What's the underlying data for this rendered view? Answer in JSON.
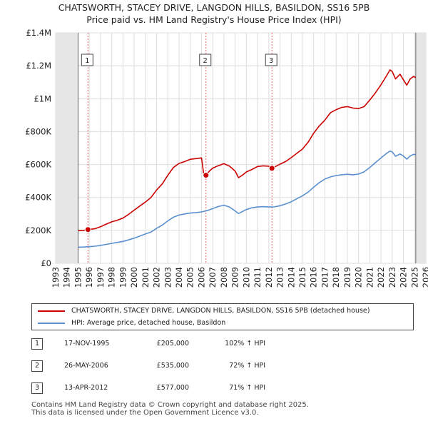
{
  "chart_data": {
    "type": "line",
    "title": "CHATSWORTH, STACEY DRIVE, LANGDON HILLS, BASILDON, SS16 5PB",
    "subtitle": "Price paid vs. HM Land Registry's House Price Index (HPI)",
    "xlim": [
      1993,
      2026
    ],
    "ylim": [
      0,
      1400000
    ],
    "x_ticks": [
      1993,
      1994,
      1995,
      1996,
      1997,
      1998,
      1999,
      2000,
      2001,
      2002,
      2003,
      2004,
      2005,
      2006,
      2007,
      2008,
      2009,
      2010,
      2011,
      2012,
      2013,
      2014,
      2015,
      2016,
      2017,
      2018,
      2019,
      2020,
      2021,
      2022,
      2023,
      2024,
      2025,
      2026
    ],
    "y_ticks": [
      0,
      200000,
      400000,
      600000,
      800000,
      1000000,
      1200000,
      1400000
    ],
    "y_tick_labels": [
      "£0",
      "£200K",
      "£400K",
      "£600K",
      "£800K",
      "£1M",
      "£1.2M",
      "£1.4M"
    ],
    "data_range": [
      1995.0,
      2025.1
    ],
    "series": [
      {
        "name": "CHATSWORTH, STACEY DRIVE, LANGDON HILLS, BASILDON, SS16 5PB (detached house)",
        "color": "#cc0000",
        "x": [
          1995.0,
          1995.5,
          1995.88,
          1996.5,
          1997.0,
          1997.5,
          1998.0,
          1998.5,
          1999.0,
          1999.5,
          2000.0,
          2000.5,
          2001.0,
          2001.5,
          2002.0,
          2002.5,
          2003.0,
          2003.5,
          2004.0,
          2004.5,
          2005.0,
          2005.5,
          2006.0,
          2006.2,
          2006.4,
          2006.7,
          2007.0,
          2007.5,
          2008.0,
          2008.5,
          2009.0,
          2009.3,
          2009.7,
          2010.0,
          2010.5,
          2011.0,
          2011.5,
          2012.0,
          2012.28,
          2012.6,
          2013.0,
          2013.5,
          2014.0,
          2014.5,
          2015.0,
          2015.5,
          2016.0,
          2016.5,
          2017.0,
          2017.5,
          2018.0,
          2018.5,
          2019.0,
          2019.5,
          2020.0,
          2020.5,
          2021.0,
          2021.5,
          2022.0,
          2022.5,
          2022.8,
          2023.0,
          2023.3,
          2023.7,
          2024.0,
          2024.3,
          2024.6,
          2024.9,
          2025.1
        ],
        "y": [
          198000,
          200000,
          205000,
          210000,
          222000,
          238000,
          252000,
          262000,
          275000,
          297000,
          323000,
          348000,
          372000,
          400000,
          445000,
          482000,
          535000,
          582000,
          607000,
          618000,
          632000,
          636000,
          640000,
          540000,
          535000,
          560000,
          578000,
          593000,
          605000,
          590000,
          560000,
          520000,
          538000,
          555000,
          570000,
          588000,
          592000,
          590000,
          577000,
          588000,
          602000,
          618000,
          642000,
          668000,
          694000,
          735000,
          790000,
          835000,
          870000,
          915000,
          933000,
          947000,
          952000,
          943000,
          940000,
          952000,
          992000,
          1035000,
          1085000,
          1140000,
          1175000,
          1165000,
          1120000,
          1148000,
          1115000,
          1082000,
          1120000,
          1135000,
          1128000
        ]
      },
      {
        "name": "HPI: Average price, detached house, Basildon",
        "color": "#5a8fcf",
        "x": [
          1995.0,
          1995.5,
          1996.0,
          1996.5,
          1997.0,
          1997.5,
          1998.0,
          1998.5,
          1999.0,
          1999.5,
          2000.0,
          2000.5,
          2001.0,
          2001.5,
          2002.0,
          2002.5,
          2003.0,
          2003.5,
          2004.0,
          2004.5,
          2005.0,
          2005.5,
          2006.0,
          2006.5,
          2007.0,
          2007.5,
          2008.0,
          2008.5,
          2009.0,
          2009.3,
          2009.7,
          2010.0,
          2010.5,
          2011.0,
          2011.5,
          2012.0,
          2012.5,
          2013.0,
          2013.5,
          2014.0,
          2014.5,
          2015.0,
          2015.5,
          2016.0,
          2016.5,
          2017.0,
          2017.5,
          2018.0,
          2018.5,
          2019.0,
          2019.5,
          2020.0,
          2020.5,
          2021.0,
          2021.5,
          2022.0,
          2022.5,
          2022.8,
          2023.0,
          2023.3,
          2023.7,
          2024.0,
          2024.3,
          2024.6,
          2024.9,
          2025.1
        ],
        "y": [
          98000,
          99000,
          101000,
          104000,
          109000,
          115000,
          121000,
          127000,
          133000,
          142000,
          153000,
          165000,
          178000,
          190000,
          212000,
          232000,
          258000,
          280000,
          293000,
          300000,
          305000,
          308000,
          312000,
          320000,
          332000,
          345000,
          353000,
          342000,
          318000,
          302000,
          316000,
          327000,
          337000,
          342000,
          344000,
          342000,
          343000,
          350000,
          360000,
          374000,
          392000,
          410000,
          432000,
          462000,
          490000,
          512000,
          525000,
          533000,
          538000,
          541000,
          538000,
          542000,
          556000,
          582000,
          611000,
          640000,
          668000,
          682000,
          677000,
          650000,
          664000,
          652000,
          633000,
          652000,
          662000,
          660000
        ]
      }
    ],
    "sale_markers": [
      {
        "label": "1",
        "x": 1995.88,
        "y": 205000
      },
      {
        "label": "2",
        "x": 2006.4,
        "y": 535000
      },
      {
        "label": "3",
        "x": 2012.28,
        "y": 577000
      }
    ]
  },
  "legend": {
    "items": [
      {
        "label": "CHATSWORTH, STACEY DRIVE, LANGDON HILLS, BASILDON, SS16 5PB (detached house)",
        "color": "#cc0000"
      },
      {
        "label": "HPI: Average price, detached house, Basildon",
        "color": "#5a8fcf"
      }
    ]
  },
  "sales": [
    {
      "num": "1",
      "date": "17-NOV-1995",
      "price": "£205,000",
      "hpi": "102% ↑ HPI"
    },
    {
      "num": "2",
      "date": "26-MAY-2006",
      "price": "£535,000",
      "hpi": "72% ↑ HPI"
    },
    {
      "num": "3",
      "date": "13-APR-2012",
      "price": "£577,000",
      "hpi": "71% ↑ HPI"
    }
  ],
  "footer": {
    "line1": "Contains HM Land Registry data © Crown copyright and database right 2025.",
    "line2": "This data is licensed under the Open Government Licence v3.0."
  }
}
